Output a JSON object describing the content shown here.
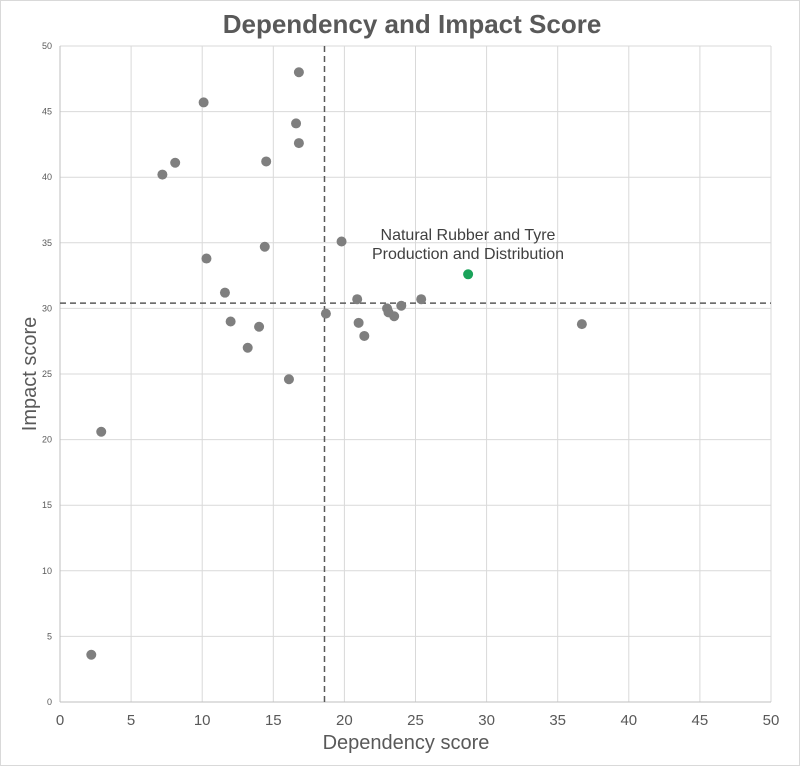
{
  "chart_data": {
    "type": "scatter",
    "title": "Dependency and Impact Score",
    "xlabel": "Dependency score",
    "ylabel": "Impact score",
    "xlim": [
      0,
      50
    ],
    "ylim": [
      0,
      50
    ],
    "xticks": [
      "0",
      "5",
      "10",
      "15",
      "20",
      "25",
      "30",
      "35",
      "40",
      "45",
      "50"
    ],
    "yticks": [
      "0",
      "5",
      "10",
      "15",
      "20",
      "25",
      "30",
      "35",
      "40",
      "45",
      "50"
    ],
    "grid": true,
    "reference_lines": {
      "x": 18.6,
      "y": 30.4
    },
    "point_color": "#7f7f7f",
    "highlight_color": "#1aa35a",
    "points": [
      {
        "x": 16.8,
        "y": 48.0
      },
      {
        "x": 10.1,
        "y": 45.7
      },
      {
        "x": 16.6,
        "y": 44.1
      },
      {
        "x": 16.8,
        "y": 42.6
      },
      {
        "x": 8.1,
        "y": 41.1
      },
      {
        "x": 14.5,
        "y": 41.2
      },
      {
        "x": 7.2,
        "y": 40.2
      },
      {
        "x": 19.8,
        "y": 35.1
      },
      {
        "x": 14.4,
        "y": 34.7
      },
      {
        "x": 10.3,
        "y": 33.8
      },
      {
        "x": 11.6,
        "y": 31.2
      },
      {
        "x": 20.9,
        "y": 30.7
      },
      {
        "x": 25.4,
        "y": 30.7
      },
      {
        "x": 24.0,
        "y": 30.2
      },
      {
        "x": 23.0,
        "y": 30.0
      },
      {
        "x": 23.1,
        "y": 29.7
      },
      {
        "x": 18.7,
        "y": 29.6
      },
      {
        "x": 23.5,
        "y": 29.4
      },
      {
        "x": 12.0,
        "y": 29.0
      },
      {
        "x": 21.0,
        "y": 28.9
      },
      {
        "x": 36.7,
        "y": 28.8
      },
      {
        "x": 14.0,
        "y": 28.6
      },
      {
        "x": 21.4,
        "y": 27.9
      },
      {
        "x": 13.2,
        "y": 27.0
      },
      {
        "x": 16.1,
        "y": 24.6
      },
      {
        "x": 2.9,
        "y": 20.6
      },
      {
        "x": 2.2,
        "y": 3.6
      }
    ],
    "highlight": {
      "x": 28.7,
      "y": 32.6,
      "label_line1": "Natural Rubber and Tyre",
      "label_line2": "Production and Distribution"
    }
  }
}
